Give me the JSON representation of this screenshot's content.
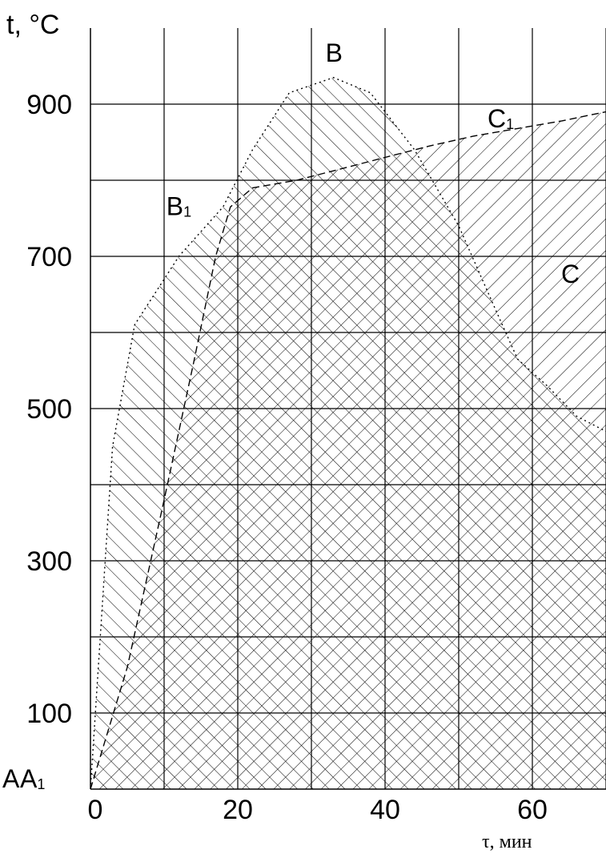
{
  "chart_data": {
    "type": "line",
    "ylabel": "t, °C",
    "xlabel": "τ, мин",
    "xlim": [
      0,
      70
    ],
    "ylim": [
      0,
      1000
    ],
    "x_ticks": [
      "0",
      "20",
      "40",
      "60"
    ],
    "x_tick_values": [
      0,
      20,
      40,
      60
    ],
    "y_ticks": [
      "100",
      "300",
      "500",
      "700",
      "900"
    ],
    "y_tick_values": [
      100,
      300,
      500,
      700,
      900
    ],
    "grid": true,
    "series": [
      {
        "id": "ABC",
        "line": "dotted",
        "points": [
          [
            0,
            0
          ],
          [
            1,
            150
          ],
          [
            2,
            300
          ],
          [
            3,
            450
          ],
          [
            6,
            610
          ],
          [
            12,
            700
          ],
          [
            18,
            765
          ],
          [
            22,
            840
          ],
          [
            27,
            915
          ],
          [
            33,
            935
          ],
          [
            38,
            915
          ],
          [
            44,
            840
          ],
          [
            50,
            740
          ],
          [
            55,
            630
          ],
          [
            58,
            565
          ],
          [
            62,
            530
          ],
          [
            66,
            490
          ],
          [
            70,
            470
          ]
        ]
      },
      {
        "id": "A1B1C1",
        "line": "dashed",
        "points": [
          [
            0,
            0
          ],
          [
            5,
            160
          ],
          [
            10,
            380
          ],
          [
            14,
            560
          ],
          [
            17,
            700
          ],
          [
            19,
            765
          ],
          [
            22,
            790
          ],
          [
            28,
            800
          ],
          [
            34,
            815
          ],
          [
            40,
            830
          ],
          [
            46,
            845
          ],
          [
            52,
            858
          ],
          [
            58,
            868
          ],
          [
            64,
            878
          ],
          [
            70,
            890
          ]
        ]
      }
    ],
    "point_labels": [
      {
        "text": "A",
        "sub": "",
        "x": 0,
        "y": 0
      },
      {
        "text": "A",
        "sub": "1",
        "x": 0,
        "y": 0
      },
      {
        "text": "B",
        "sub": "",
        "x": 33,
        "y": 935
      },
      {
        "text": "B",
        "sub": "1",
        "x": 19,
        "y": 765
      },
      {
        "text": "C",
        "sub": "",
        "x": 60,
        "y": 560
      },
      {
        "text": "C",
        "sub": "1",
        "x": 55,
        "y": 855
      }
    ]
  }
}
